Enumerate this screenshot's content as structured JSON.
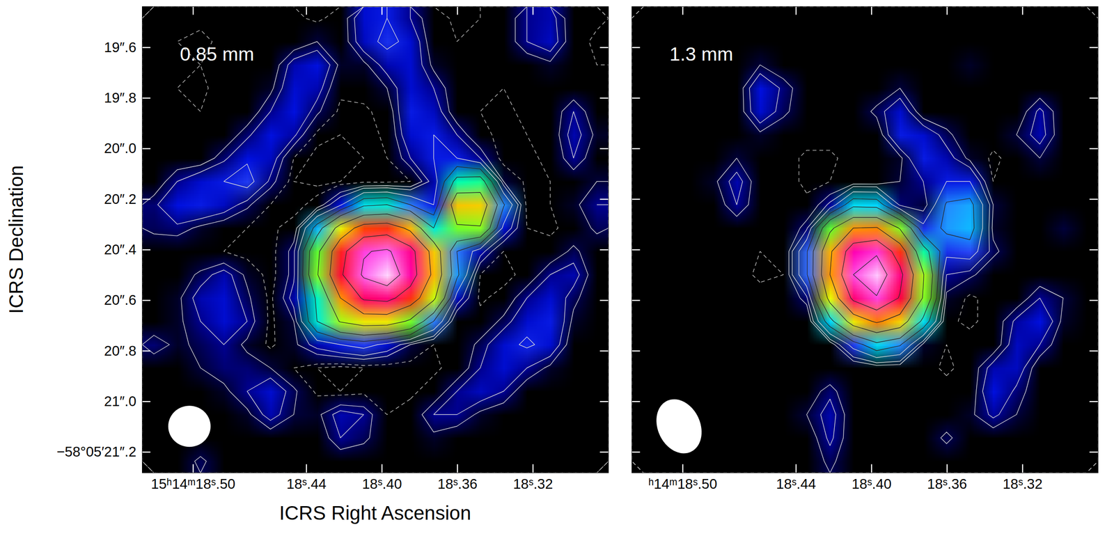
{
  "chart_data": [
    {
      "type": "heatmap",
      "title": "0.85 mm",
      "x_label": "ICRS Right Ascension",
      "y_label": "ICRS Declination",
      "xlim": [
        18.527,
        18.28
      ],
      "ylim": [
        21.282,
        19.438
      ],
      "xticks": [
        {
          "value": 18.5,
          "label": "15ʰ14ᵐ18ˢ.50"
        },
        {
          "value": 18.44,
          "label": "18ˢ.44"
        },
        {
          "value": 18.4,
          "label": "18ˢ.40"
        },
        {
          "value": 18.36,
          "label": "18ˢ.36"
        },
        {
          "value": 18.32,
          "label": "18ˢ.32"
        }
      ],
      "yticks": [
        {
          "value": 19.6,
          "label": "19″.6"
        },
        {
          "value": 19.8,
          "label": "19″.8"
        },
        {
          "value": 20.0,
          "label": "20″.0"
        },
        {
          "value": 20.2,
          "label": "20″.2"
        },
        {
          "value": 20.4,
          "label": "20″.4"
        },
        {
          "value": 20.6,
          "label": "20″.6"
        },
        {
          "value": 20.8,
          "label": "20″.8"
        },
        {
          "value": 21.0,
          "label": "21″.0"
        },
        {
          "value": 21.2,
          "label": "−58°05′21″.2"
        }
      ],
      "color_range": [
        0,
        100
      ],
      "contour_levels": [
        -4,
        -2,
        3,
        6,
        12,
        20,
        30,
        45,
        60,
        75,
        90
      ],
      "beam": {
        "ra": 18.502,
        "dec": 21.098,
        "major": 0.165,
        "minor": 0.16,
        "pa": 90
      },
      "cells": [
        [
          0,
          0,
          -1,
          -2,
          0,
          0,
          -1,
          -3,
          0,
          10,
          12,
          6,
          0,
          -3,
          -2,
          0,
          6,
          8,
          0,
          -1
        ],
        [
          0,
          -2,
          -3,
          -1,
          0,
          0,
          0,
          3,
          0,
          9,
          14,
          10,
          0,
          -2,
          0,
          0,
          6,
          9,
          0,
          -3
        ],
        [
          0,
          0,
          -2,
          -2,
          0,
          0,
          8,
          11,
          2,
          2,
          8,
          10,
          2,
          0,
          -2,
          0,
          0,
          2,
          0,
          -2
        ],
        [
          0,
          -2,
          -3,
          0,
          0,
          2,
          10,
          8,
          -1,
          0,
          3,
          10,
          6,
          0,
          -2,
          -2,
          0,
          0,
          0,
          0
        ],
        [
          0,
          0,
          -2,
          0,
          0,
          6,
          11,
          4,
          -3,
          -3,
          0,
          12,
          9,
          0,
          -2,
          -3,
          -1,
          0,
          6,
          0
        ],
        [
          0,
          -2,
          0,
          0,
          5,
          11,
          7,
          -3,
          -4,
          -4,
          -1,
          10,
          12,
          6,
          -1,
          -3,
          -2,
          0,
          8,
          2
        ],
        [
          0,
          0,
          0,
          5,
          11,
          9,
          -2,
          -5,
          -5,
          -4,
          -2,
          6,
          12,
          12,
          6,
          -4,
          -3,
          -1,
          6,
          0
        ],
        [
          0,
          6,
          10,
          12,
          15,
          5,
          -4,
          -5,
          -4,
          -3,
          -3,
          -2,
          8,
          34,
          36,
          3,
          -3,
          -2,
          0,
          3
        ],
        [
          5,
          11,
          12,
          9,
          4,
          -2,
          -4,
          0,
          11,
          28,
          30,
          20,
          12,
          56,
          55,
          21,
          -3,
          -2,
          2,
          6
        ],
        [
          4,
          5,
          2,
          0,
          -2,
          -3,
          0,
          24,
          51,
          66,
          68,
          57,
          30,
          43,
          44,
          10,
          -2,
          -3,
          0,
          4
        ],
        [
          0,
          -1,
          -2,
          -2,
          -4,
          -4,
          5,
          42,
          70,
          89,
          92,
          80,
          55,
          20,
          8,
          -2,
          -2,
          0,
          4,
          0
        ],
        [
          0,
          0,
          4,
          8,
          2,
          -4,
          5,
          44,
          73,
          92,
          100,
          82,
          57,
          22,
          -2,
          -4,
          0,
          6,
          8,
          0
        ],
        [
          0,
          2,
          8,
          10,
          4,
          -3,
          8,
          32,
          60,
          77,
          79,
          68,
          48,
          9,
          -3,
          0,
          6,
          10,
          4,
          0
        ],
        [
          0,
          2,
          6,
          10,
          6,
          -3,
          3,
          30,
          46,
          52,
          52,
          43,
          20,
          -2,
          0,
          4,
          10,
          12,
          2,
          0
        ],
        [
          5,
          2,
          4,
          6,
          2,
          -3,
          2,
          8,
          12,
          15,
          10,
          3,
          -2,
          0,
          4,
          10,
          13,
          10,
          0,
          0
        ],
        [
          0,
          0,
          3,
          5,
          5,
          3,
          -2,
          -4,
          -5,
          -4,
          -4,
          -4,
          -3,
          0,
          6,
          10,
          6,
          2,
          0,
          0
        ],
        [
          0,
          0,
          0,
          2,
          6,
          10,
          4,
          -3,
          -4,
          -3,
          -4,
          -3,
          0,
          6,
          9,
          6,
          0,
          0,
          0,
          0
        ],
        [
          0,
          0,
          0,
          0,
          2,
          8,
          3,
          2,
          8,
          6,
          -2,
          0,
          6,
          6,
          2,
          0,
          -2,
          0,
          -2,
          0
        ],
        [
          0,
          0,
          -1,
          -2,
          0,
          0,
          0,
          0,
          6,
          4,
          0,
          0,
          2,
          0,
          0,
          0,
          0,
          -2,
          -2,
          0
        ],
        [
          0,
          0,
          4,
          0,
          0,
          0,
          0,
          0,
          0,
          0,
          -1,
          0,
          0,
          -2,
          0,
          0,
          0,
          0,
          0,
          0
        ]
      ]
    },
    {
      "type": "heatmap",
      "title": "1.3 mm",
      "tick_labels": "x",
      "xlim": [
        18.527,
        18.28
      ],
      "ylim": [
        21.282,
        19.438
      ],
      "xticks": [
        {
          "value": 18.5,
          "label": "ʰ14ᵐ18ˢ.50"
        },
        {
          "value": 18.44,
          "label": "18ˢ.44"
        },
        {
          "value": 18.4,
          "label": "18ˢ.40"
        },
        {
          "value": 18.36,
          "label": "18ˢ.36"
        },
        {
          "value": 18.32,
          "label": "18ˢ.32"
        }
      ],
      "yticks": [
        19.6,
        19.8,
        20.0,
        20.2,
        20.4,
        20.6,
        20.8,
        21.0,
        21.2
      ],
      "color_range": [
        0,
        100
      ],
      "contour_levels": [
        -4,
        -2,
        3,
        6,
        12,
        20,
        30,
        45,
        60,
        75,
        90
      ],
      "beam": {
        "ra": 18.502,
        "dec": 21.098,
        "major": 0.22,
        "minor": 0.165,
        "pa": 25
      },
      "cells": [
        [
          0,
          0,
          0,
          0,
          0,
          0,
          0,
          0,
          0,
          0,
          0,
          0,
          0,
          0,
          0,
          0,
          0,
          0,
          0,
          0
        ],
        [
          0,
          0,
          0,
          0,
          0,
          0,
          0,
          0,
          0,
          0,
          0,
          0,
          0,
          0,
          0,
          0,
          0,
          0,
          0,
          0
        ],
        [
          0,
          0,
          0,
          0,
          0,
          3,
          0,
          0,
          0,
          0,
          0,
          0,
          0,
          0,
          2,
          0,
          0,
          0,
          0,
          0
        ],
        [
          0,
          0,
          0,
          0,
          0,
          11,
          5,
          0,
          0,
          0,
          0,
          3,
          0,
          0,
          0,
          0,
          0,
          0,
          0,
          0
        ],
        [
          0,
          0,
          0,
          0,
          0,
          10,
          4,
          0,
          0,
          0,
          4,
          10,
          0,
          0,
          0,
          0,
          0,
          7,
          0,
          0
        ],
        [
          0,
          0,
          0,
          0,
          0,
          2,
          0,
          0,
          0,
          0,
          0,
          12,
          10,
          4,
          0,
          0,
          3,
          8,
          0,
          0
        ],
        [
          0,
          0,
          0,
          0,
          3,
          0,
          0,
          -3,
          -3,
          0,
          0,
          2,
          12,
          8,
          2,
          -3,
          0,
          3,
          0,
          0
        ],
        [
          0,
          0,
          0,
          2,
          8,
          0,
          0,
          -3,
          -2,
          0,
          0,
          3,
          6,
          12,
          12,
          -2,
          0,
          0,
          0,
          0
        ],
        [
          0,
          0,
          0,
          0,
          6,
          0,
          -2,
          -1,
          7,
          27,
          26,
          5,
          3,
          21,
          23,
          3,
          0,
          0,
          0,
          0
        ],
        [
          0,
          0,
          0,
          0,
          0,
          0,
          -2,
          5,
          42,
          60,
          61,
          44,
          14,
          22,
          24,
          2,
          0,
          0,
          3,
          0
        ],
        [
          0,
          0,
          0,
          0,
          0,
          -2,
          -2,
          19,
          58,
          83,
          88,
          68,
          35,
          14,
          16,
          4,
          0,
          0,
          0,
          0
        ],
        [
          0,
          0,
          0,
          0,
          0,
          -3,
          -2,
          19,
          60,
          90,
          99,
          79,
          46,
          6,
          4,
          0,
          0,
          0,
          0,
          0
        ],
        [
          0,
          0,
          0,
          0,
          0,
          0,
          -2,
          5,
          50,
          78,
          89,
          74,
          44,
          2,
          -3,
          0,
          0,
          6,
          3,
          0
        ],
        [
          0,
          0,
          0,
          0,
          0,
          0,
          -1,
          -2,
          26,
          52,
          62,
          54,
          27,
          -1,
          -3,
          0,
          7,
          11,
          2,
          0
        ],
        [
          -2,
          0,
          0,
          0,
          0,
          0,
          0,
          -2,
          0,
          15,
          27,
          21,
          2,
          -2,
          0,
          0,
          9,
          6,
          0,
          0
        ],
        [
          0,
          0,
          0,
          0,
          0,
          0,
          0,
          0,
          -2,
          -2,
          0,
          0,
          0,
          -3,
          0,
          8,
          9,
          0,
          0,
          0
        ],
        [
          0,
          0,
          0,
          0,
          0,
          0,
          0,
          0,
          5,
          -2,
          0,
          0,
          0,
          0,
          0,
          11,
          5,
          0,
          0,
          0
        ],
        [
          0,
          0,
          0,
          0,
          0,
          0,
          0,
          3,
          8,
          0,
          0,
          0,
          0,
          0,
          2,
          7,
          3,
          0,
          0,
          0
        ],
        [
          0,
          0,
          0,
          0,
          0,
          0,
          0,
          0,
          7,
          0,
          0,
          0,
          0,
          4,
          0,
          0,
          0,
          0,
          0,
          0
        ],
        [
          0,
          0,
          0,
          0,
          0,
          0,
          0,
          0,
          4,
          0,
          0,
          0,
          0,
          0,
          0,
          0,
          0,
          0,
          0,
          0
        ]
      ]
    }
  ]
}
